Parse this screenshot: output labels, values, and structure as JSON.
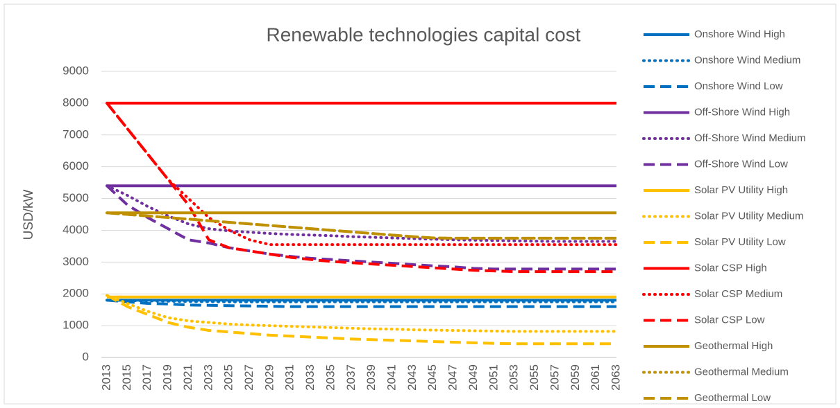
{
  "chart_data": {
    "type": "line",
    "title": "Renewable technologies capital cost",
    "y_label": "USD/kW",
    "x": [
      2013,
      2015,
      2017,
      2019,
      2021,
      2023,
      2025,
      2027,
      2029,
      2031,
      2033,
      2035,
      2037,
      2039,
      2041,
      2043,
      2045,
      2047,
      2049,
      2051,
      2053,
      2055,
      2057,
      2059,
      2061,
      2063
    ],
    "xlim": [
      2013,
      2063
    ],
    "ylim": [
      0,
      9000
    ],
    "yticks": [
      0,
      1000,
      2000,
      3000,
      4000,
      5000,
      6000,
      7000,
      8000,
      9000
    ],
    "grid": true,
    "legend": "right",
    "series": [
      {
        "name": "Onshore Wind High",
        "color": "#0070c0",
        "dash": "solid",
        "values": [
          1800,
          1800,
          1800,
          1800,
          1800,
          1800,
          1800,
          1800,
          1800,
          1800,
          1800,
          1800,
          1800,
          1800,
          1800,
          1800,
          1800,
          1800,
          1800,
          1800,
          1800,
          1800,
          1800,
          1800,
          1800,
          1800
        ]
      },
      {
        "name": "Onshore Wind Medium",
        "color": "#0070c0",
        "dash": "dot",
        "values": [
          1800,
          1790,
          1780,
          1770,
          1760,
          1755,
          1750,
          1750,
          1750,
          1750,
          1750,
          1750,
          1750,
          1750,
          1750,
          1750,
          1750,
          1750,
          1750,
          1750,
          1750,
          1750,
          1750,
          1750,
          1750,
          1750
        ]
      },
      {
        "name": "Onshore Wind Low",
        "color": "#0070c0",
        "dash": "dash",
        "values": [
          1800,
          1750,
          1700,
          1680,
          1650,
          1640,
          1630,
          1620,
          1610,
          1600,
          1600,
          1600,
          1600,
          1600,
          1600,
          1600,
          1600,
          1600,
          1600,
          1600,
          1600,
          1600,
          1600,
          1600,
          1600,
          1600
        ]
      },
      {
        "name": "Off-Shore Wind High",
        "color": "#7030a0",
        "dash": "solid",
        "values": [
          5400,
          5400,
          5400,
          5400,
          5400,
          5400,
          5400,
          5400,
          5400,
          5400,
          5400,
          5400,
          5400,
          5400,
          5400,
          5400,
          5400,
          5400,
          5400,
          5400,
          5400,
          5400,
          5400,
          5400,
          5400,
          5400
        ]
      },
      {
        "name": "Off-Shore Wind Medium",
        "color": "#7030a0",
        "dash": "dot",
        "values": [
          5400,
          5100,
          4750,
          4450,
          4200,
          4050,
          3980,
          3940,
          3900,
          3870,
          3850,
          3830,
          3800,
          3780,
          3760,
          3740,
          3720,
          3700,
          3690,
          3680,
          3670,
          3660,
          3650,
          3650,
          3650,
          3650
        ]
      },
      {
        "name": "Off-Shore Wind Low",
        "color": "#7030a0",
        "dash": "dash",
        "values": [
          5400,
          4800,
          4400,
          4050,
          3700,
          3600,
          3450,
          3350,
          3250,
          3180,
          3120,
          3080,
          3040,
          3000,
          2960,
          2920,
          2880,
          2850,
          2800,
          2780,
          2780,
          2780,
          2780,
          2780,
          2780,
          2780
        ]
      },
      {
        "name": "Solar PV Utility High",
        "color": "#ffc000",
        "dash": "solid",
        "values": [
          1900,
          1900,
          1900,
          1900,
          1900,
          1900,
          1900,
          1900,
          1900,
          1900,
          1900,
          1900,
          1900,
          1900,
          1900,
          1900,
          1900,
          1900,
          1900,
          1900,
          1900,
          1900,
          1900,
          1900,
          1900,
          1900
        ]
      },
      {
        "name": "Solar PV Utility Medium",
        "color": "#ffc000",
        "dash": "dot",
        "values": [
          1950,
          1700,
          1450,
          1250,
          1150,
          1100,
          1050,
          1020,
          1000,
          980,
          960,
          940,
          920,
          900,
          890,
          870,
          860,
          850,
          840,
          830,
          820,
          820,
          820,
          820,
          820,
          820
        ]
      },
      {
        "name": "Solar PV Utility Low",
        "color": "#ffc000",
        "dash": "dash",
        "values": [
          1950,
          1600,
          1350,
          1100,
          950,
          850,
          800,
          750,
          700,
          670,
          640,
          610,
          580,
          560,
          540,
          520,
          500,
          480,
          460,
          440,
          430,
          430,
          430,
          430,
          430,
          430
        ]
      },
      {
        "name": "Solar CSP High",
        "color": "#ff0000",
        "dash": "solid",
        "values": [
          8000,
          8000,
          8000,
          8000,
          8000,
          8000,
          8000,
          8000,
          8000,
          8000,
          8000,
          8000,
          8000,
          8000,
          8000,
          8000,
          8000,
          8000,
          8000,
          8000,
          8000,
          8000,
          8000,
          8000,
          8000,
          8000
        ]
      },
      {
        "name": "Solar CSP Medium",
        "color": "#ff0000",
        "dash": "dot",
        "values": [
          8000,
          7200,
          6400,
          5600,
          5000,
          4400,
          4000,
          3700,
          3550,
          3550,
          3550,
          3550,
          3550,
          3550,
          3550,
          3550,
          3550,
          3550,
          3550,
          3550,
          3550,
          3550,
          3550,
          3550,
          3550,
          3550
        ]
      },
      {
        "name": "Solar CSP Low",
        "color": "#ff0000",
        "dash": "dash",
        "values": [
          8000,
          7200,
          6400,
          5600,
          4800,
          3700,
          3450,
          3350,
          3250,
          3150,
          3080,
          3020,
          2980,
          2940,
          2900,
          2860,
          2820,
          2780,
          2740,
          2720,
          2700,
          2700,
          2700,
          2700,
          2700,
          2700
        ]
      },
      {
        "name": "Geothermal High",
        "color": "#bf9000",
        "dash": "solid",
        "values": [
          4550,
          4550,
          4550,
          4550,
          4550,
          4550,
          4550,
          4550,
          4550,
          4550,
          4550,
          4550,
          4550,
          4550,
          4550,
          4550,
          4550,
          4550,
          4550,
          4550,
          4550,
          4550,
          4550,
          4550,
          4550,
          4550
        ]
      },
      {
        "name": "Geothermal Medium",
        "color": "#bf9000",
        "dash": "dot",
        "values": [
          4550,
          4500,
          4450,
          4400,
          4350,
          4300,
          4250,
          4200,
          4150,
          4100,
          4050,
          4000,
          3950,
          3900,
          3850,
          3800,
          3760,
          3750,
          3750,
          3750,
          3750,
          3750,
          3750,
          3750,
          3750,
          3750
        ]
      },
      {
        "name": "Geothermal Low",
        "color": "#bf9000",
        "dash": "dash",
        "values": [
          4550,
          4500,
          4450,
          4400,
          4350,
          4300,
          4250,
          4200,
          4150,
          4100,
          4050,
          4000,
          3950,
          3900,
          3850,
          3800,
          3760,
          3750,
          3750,
          3750,
          3750,
          3750,
          3750,
          3750,
          3750,
          3750
        ]
      }
    ]
  }
}
